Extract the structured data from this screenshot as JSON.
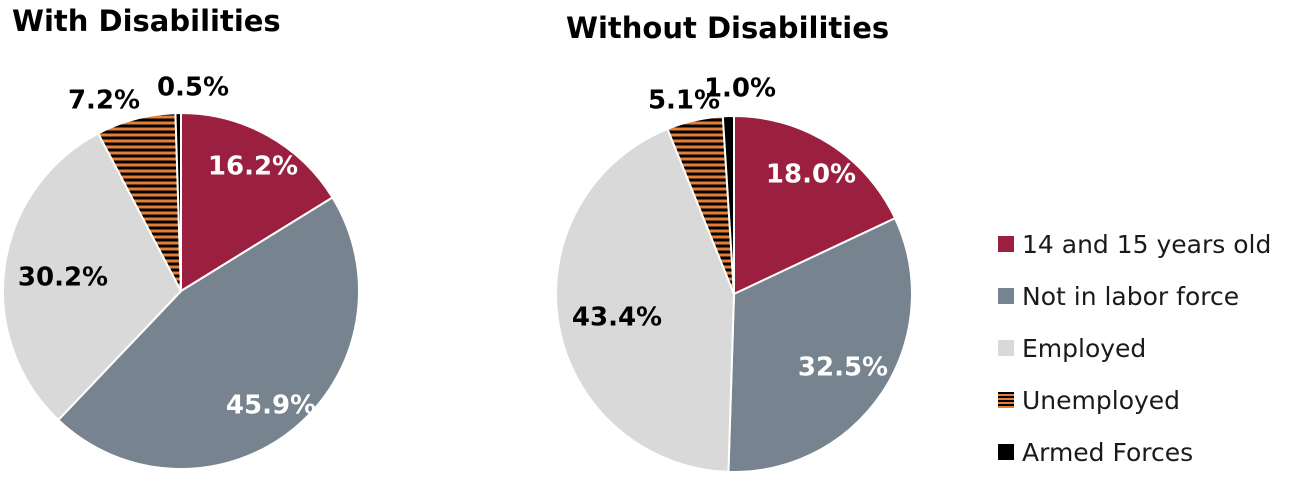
{
  "colors": {
    "14 and 15 years old": "#9b1f3e",
    "Not in labor force": "#77838f",
    "Employed": "#d9d9d9",
    "Unemployed": "#e67e35",
    "Armed Forces": "#000000"
  },
  "legend": {
    "items": [
      "14 and 15 years old",
      "Not in labor force",
      "Employed",
      "Unemployed",
      "Armed Forces"
    ],
    "placement": "right"
  },
  "chart_data": [
    {
      "type": "pie",
      "title": "With Disabilities",
      "categories": [
        "14 and 15 years old",
        "Not in labor force",
        "Employed",
        "Unemployed",
        "Armed Forces"
      ],
      "values": [
        16.2,
        45.9,
        30.2,
        7.2,
        0.5
      ],
      "labels": [
        "16.2%",
        "45.9%",
        "30.2%",
        "7.2%",
        "0.5%"
      ]
    },
    {
      "type": "pie",
      "title": "Without Disabilities",
      "categories": [
        "14 and 15 years old",
        "Not in labor force",
        "Employed",
        "Unemployed",
        "Armed Forces"
      ],
      "values": [
        18.0,
        32.5,
        43.4,
        5.1,
        1.0
      ],
      "labels": [
        "18.0%",
        "32.5%",
        "43.4%",
        "5.1%",
        "1.0%"
      ]
    }
  ]
}
